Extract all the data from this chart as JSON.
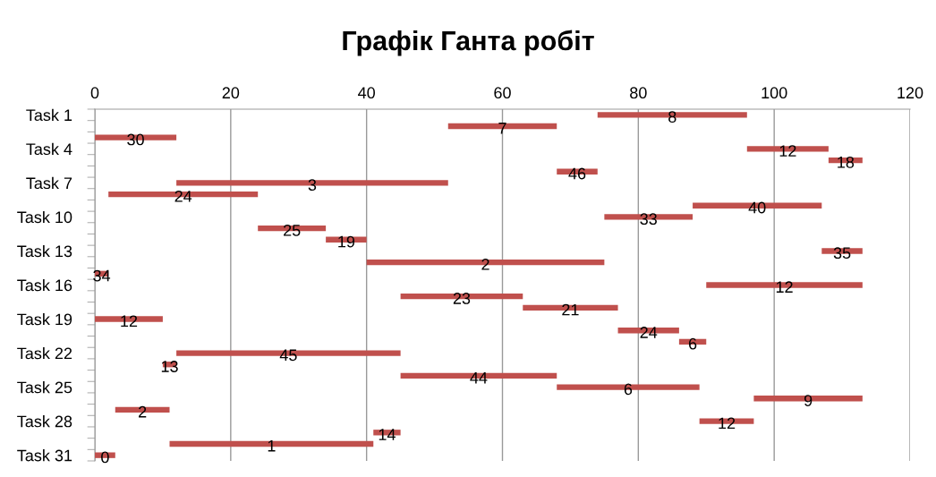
{
  "chart_data": {
    "type": "bar",
    "orientation": "horizontal",
    "title": "Графік Ганта робіт",
    "categories": [
      "Task 1",
      null,
      null,
      "Task 4",
      null,
      null,
      "Task 7",
      null,
      null,
      "Task 10",
      null,
      null,
      "Task 13",
      null,
      null,
      "Task 16",
      null,
      null,
      "Task 19",
      null,
      null,
      "Task 22",
      null,
      null,
      "Task 25",
      null,
      null,
      "Task 28",
      null,
      null,
      "Task 31"
    ],
    "base": [
      74,
      52,
      0,
      96,
      108,
      68,
      12,
      2,
      88,
      75,
      24,
      34,
      107,
      40,
      0,
      90,
      45,
      63,
      0,
      77,
      86,
      12,
      10,
      45,
      68,
      97,
      3,
      89,
      41,
      11,
      0
    ],
    "values": [
      22,
      16,
      12,
      12,
      5,
      6,
      40,
      22,
      19,
      13,
      10,
      6,
      6,
      35,
      2,
      23,
      18,
      14,
      10,
      9,
      4,
      33,
      2,
      23,
      21,
      16,
      8,
      8,
      4,
      30,
      3
    ],
    "annotations": [
      {
        "text": "8",
        "x": 85
      },
      {
        "text": "7",
        "x": 60
      },
      {
        "text": "30",
        "x": 6
      },
      {
        "text": "12",
        "x": 102
      },
      {
        "text": "18",
        "x": 110.5
      },
      {
        "text": "46",
        "x": 71
      },
      {
        "text": "3",
        "x": 32
      },
      {
        "text": "24",
        "x": 13
      },
      {
        "text": "40",
        "x": 97.5
      },
      {
        "text": "33",
        "x": 81.5
      },
      {
        "text": "25",
        "x": 29
      },
      {
        "text": "19",
        "x": 37
      },
      {
        "text": "35",
        "x": 110
      },
      {
        "text": "2",
        "x": 57.5
      },
      {
        "text": "34",
        "x": 1
      },
      {
        "text": "12",
        "x": 101.5
      },
      {
        "text": "23",
        "x": 54
      },
      {
        "text": "21",
        "x": 70
      },
      {
        "text": "12",
        "x": 5
      },
      {
        "text": "24",
        "x": 81.5
      },
      {
        "text": "6",
        "x": 88
      },
      {
        "text": "45",
        "x": 28.5
      },
      {
        "text": "13",
        "x": 11
      },
      {
        "text": "44",
        "x": 56.5
      },
      {
        "text": "6",
        "x": 78.5
      },
      {
        "text": "9",
        "x": 105
      },
      {
        "text": "2",
        "x": 7
      },
      {
        "text": "12",
        "x": 93
      },
      {
        "text": "14",
        "x": 43
      },
      {
        "text": "1",
        "x": 26
      },
      {
        "text": "0",
        "x": 1.5
      }
    ],
    "color": "#c0504d",
    "xlim": [
      0,
      120
    ],
    "xticks": [
      0,
      20,
      40,
      60,
      80,
      100,
      120
    ],
    "grid": "x",
    "legend": false
  }
}
